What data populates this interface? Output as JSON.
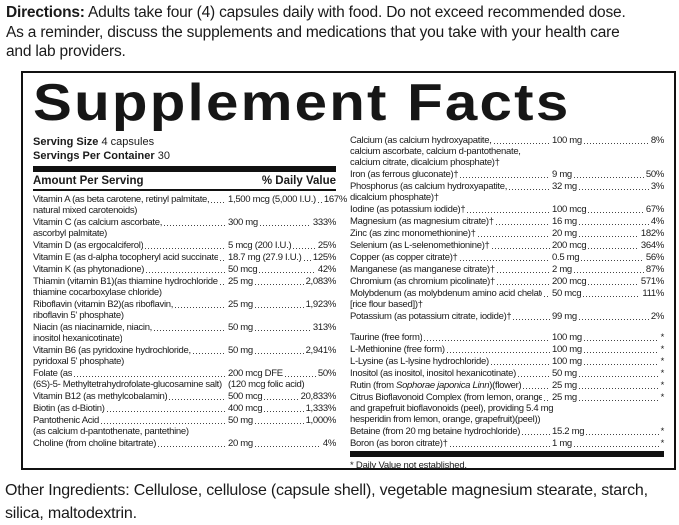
{
  "colors": {
    "text": "#1a1a1a",
    "border": "#111111",
    "bar": "#111111",
    "background": "#ffffff"
  },
  "directions": {
    "label": "Directions:",
    "line1": " Adults take four (4) capsules daily with food. Do not exceed recommended dose.",
    "line2": "As a reminder, discuss the supplements and medications that you take with your health care",
    "line3": "and lab providers."
  },
  "panel": {
    "title": "Supplement Facts",
    "serving_size_label": "Serving Size",
    "serving_size_value": "4 capsules",
    "servings_label": "Servings Per Container",
    "servings_value": "30",
    "amount_header": "Amount Per Serving",
    "dv_header": "% Daily Value",
    "dv_note": "* Daily Value not established.",
    "left_rows": [
      {
        "name": "Vitamin A (as beta carotene, retinyl palmitate,",
        "cont": [
          {
            "t": "natural mixed carotenoids)"
          }
        ],
        "amount": "1,500 mcg (5,000 I.U.)",
        "dv": "167%"
      },
      {
        "name": "Vitamin C (as calcium ascorbate,",
        "cont": [
          {
            "t": "ascorbyl palmitate)"
          }
        ],
        "amount": "300 mg",
        "dv": "333%"
      },
      {
        "name": "Vitamin D (as ergocalciferol)",
        "amount": "5 mcg (200 I.U.)",
        "dv": "25%"
      },
      {
        "name": "Vitamin E (as d-alpha tocopheryl acid succinate)",
        "amount": "18.7 mg (27.9 I.U.)",
        "dv": "125%"
      },
      {
        "name": "Vitamin K (as phytonadione)",
        "amount": "50 mcg",
        "dv": "42%"
      },
      {
        "name": "Thiamin (vitamin B1)(as thiamine hydrochloride,",
        "cont": [
          {
            "t": "thiamine cocarboxylase chloride)"
          }
        ],
        "amount": "25 mg",
        "dv": "2,083%"
      },
      {
        "name": "Riboflavin (vitamin B2)(as riboflavin,",
        "cont": [
          {
            "t": "riboflavin 5' phosphate)"
          }
        ],
        "amount": "25 mg",
        "dv": "1,923%"
      },
      {
        "name": "Niacin (as niacinamide, niacin,",
        "cont": [
          {
            "t": "inositol hexanicotinate)"
          }
        ],
        "amount": "50 mg",
        "dv": "313%"
      },
      {
        "name": "Vitamin B6 (as pyridoxine hydrochloride,",
        "cont": [
          {
            "t": "pyridoxal 5' phosphate)"
          }
        ],
        "amount": "50 mg",
        "dv": "2,941%"
      },
      {
        "name": "Folate (as",
        "cont": [
          {
            "t": "(6S)-5- Methyltetrahydrofolate-glucosamine salt)",
            "a": "(120 mcg folic acid)"
          }
        ],
        "amount": "200 mcg DFE",
        "dv": "50%"
      },
      {
        "name": "Vitamin B12 (as methylcobalamin)",
        "amount": "500 mcg",
        "dv": "20,833%"
      },
      {
        "name": "Biotin (as d-Biotin)",
        "amount": "400 mcg",
        "dv": "1,333%"
      },
      {
        "name": "Pantothenic Acid",
        "cont": [
          {
            "t": "(as calcium d-pantothenate, pantethine)"
          }
        ],
        "amount": "50 mg",
        "dv": "1,000%"
      },
      {
        "name": "Choline (from choline bitartrate)",
        "amount": "20 mg",
        "dv": "4%"
      }
    ],
    "right_rows": [
      {
        "name": "Calcium (as calcium hydroxyapatite,",
        "cont": [
          {
            "t": "calcium ascorbate, calcium d-pantothenate,"
          },
          {
            "t": "calcium citrate, dicalcium phosphate)†"
          }
        ],
        "amount": "100 mg",
        "dv": "8%"
      },
      {
        "name": "Iron (as ferrous gluconate)†",
        "amount": "9 mg",
        "dv": "50%"
      },
      {
        "name": "Phosphorus (as calcium hydroxyapatite,",
        "cont": [
          {
            "t": "dicalcium phosphate)†"
          }
        ],
        "amount": "32 mg",
        "dv": "3%"
      },
      {
        "name": "Iodine (as potassium iodide)†",
        "amount": "100 mcg",
        "dv": "67%"
      },
      {
        "name": "Magnesium (as magnesium citrate)†",
        "amount": "16 mg",
        "dv": "4%"
      },
      {
        "name": "Zinc (as zinc monomethionine)†",
        "amount": "20 mg",
        "dv": "182%"
      },
      {
        "name": "Selenium (as L-selenomethionine)†",
        "amount": "200 mcg",
        "dv": "364%"
      },
      {
        "name": "Copper (as copper citrate)†",
        "amount": "0.5 mg",
        "dv": "56%"
      },
      {
        "name": "Manganese (as manganese citrate)†",
        "amount": "2 mg",
        "dv": "87%"
      },
      {
        "name": "Chromium (as chromium picolinate)†",
        "amount": "200 mcg",
        "dv": "571%"
      },
      {
        "name": "Molybdenum (as molybdenum amino acid chelate",
        "cont": [
          {
            "t": "[rice flour based])†"
          }
        ],
        "amount": "50 mcg",
        "dv": "111%"
      },
      {
        "name": "Potassium (as potassium citrate, iodide)†",
        "amount": "99 mg",
        "dv": "2%"
      },
      {
        "spacer": true
      },
      {
        "name": "Taurine (free form)",
        "amount": "100 mg",
        "dv": "*"
      },
      {
        "name": "L-Methionine (free form)",
        "amount": "100 mg",
        "dv": "*"
      },
      {
        "name": "L-Lysine (as L-lysine hydrochloride)",
        "amount": "100 mg",
        "dv": "*"
      },
      {
        "name": "Inositol (as inositol, inositol hexanicotinate)",
        "amount": "50 mg",
        "dv": "*"
      },
      {
        "name_pre": "Rutin (from ",
        "name_i": "Sophorae japonica Linn",
        "name_post": ")(flower)",
        "amount": "25 mg",
        "dv": "*"
      },
      {
        "name": "Citrus Bioflavonoid Complex (from lemon, orange",
        "cont": [
          {
            "t": "and grapefruit bioflavonoids (peel), providing 5.4 mg"
          },
          {
            "t": "hesperidin from lemon, orange, grapefruit)(peel))"
          }
        ],
        "amount": "25 mg",
        "dv": "*"
      },
      {
        "name": "Betaine (from 20 mg betaine hydrochloride)",
        "amount": "15.2 mg",
        "dv": "*"
      },
      {
        "name": "Boron (as boron citrate)†",
        "amount": "1 mg",
        "dv": "*"
      }
    ]
  },
  "other_ingredients": {
    "line1": "Other Ingredients: Cellulose, cellulose (capsule shell),  vegetable magnesium stearate, starch,",
    "line2": "silica, maltodextrin."
  }
}
